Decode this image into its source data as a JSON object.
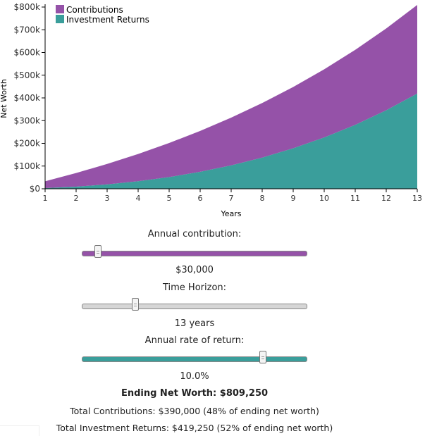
{
  "chart_data": {
    "type": "area",
    "stacked": true,
    "x": [
      1,
      2,
      3,
      4,
      5,
      6,
      7,
      8,
      9,
      10,
      11,
      12,
      13
    ],
    "series": [
      {
        "name": "Investment Returns",
        "color": "#3a9e9b",
        "values": [
          3000,
          9300,
          19230,
          33153,
          51468,
          74615,
          103077,
          137384,
          178123,
          225935,
          281529,
          345681,
          419250
        ]
      },
      {
        "name": "Contributions",
        "color": "#9552a8",
        "values": [
          30000,
          60000,
          90000,
          120000,
          150000,
          180000,
          210000,
          240000,
          270000,
          300000,
          330000,
          360000,
          390000
        ]
      }
    ],
    "xlabel": "Years",
    "ylabel": "Net Worth",
    "xlim": [
      1,
      13
    ],
    "ylim": [
      0,
      800000
    ],
    "yticks": [
      "$0",
      "$100k",
      "$200k",
      "$300k",
      "$400k",
      "$500k",
      "$600k",
      "$700k",
      "$800k"
    ],
    "xticks": [
      "1",
      "2",
      "3",
      "4",
      "5",
      "6",
      "7",
      "8",
      "9",
      "10",
      "11",
      "12",
      "13"
    ],
    "legend": "top-left",
    "grid": false
  },
  "controls": {
    "contribution": {
      "label": "Annual contribution:",
      "value": "$30,000",
      "fraction": 0.07,
      "color": "#9552a8"
    },
    "horizon": {
      "label": "Time Horizon:",
      "value": "13 years",
      "fraction": 0.235,
      "color": "#d6d6d6"
    },
    "rate": {
      "label": "Annual rate of return:",
      "value": "10.0%",
      "fraction": 0.805,
      "color": "#3a9e9b"
    }
  },
  "summary": {
    "ending": "Ending Net Worth: $809,250",
    "contributions": "Total Contributions: $390,000 (48% of ending net worth)",
    "returns": "Total Investment Returns: $419,250 (52% of ending net worth)"
  }
}
